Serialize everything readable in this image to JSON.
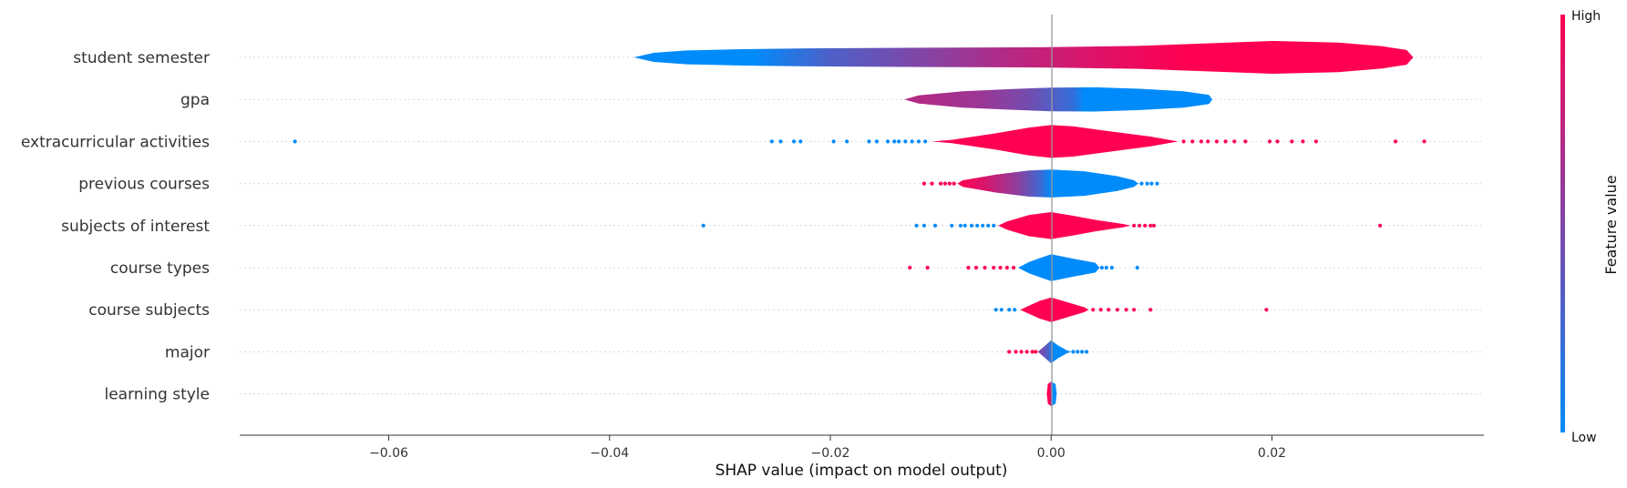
{
  "chart_data": {
    "type": "violin",
    "xlabel": "SHAP value (impact on model output)",
    "xlim": [
      -0.0735,
      0.0392
    ],
    "xticks": [
      -0.06,
      -0.04,
      -0.02,
      0.0,
      0.02
    ],
    "xtick_labels": [
      "−0.06",
      "−0.04",
      "−0.02",
      "0.00",
      "0.02"
    ],
    "grid": false,
    "colorbar": {
      "label": "Feature value",
      "high_label": "High",
      "low_label": "Low",
      "high_color": "#ff0052",
      "low_color": "#008bfb"
    },
    "features": [
      {
        "name": "student semester",
        "profile": [
          [
            -0.0378,
            0.0
          ],
          [
            -0.036,
            0.28
          ],
          [
            -0.033,
            0.42
          ],
          [
            -0.028,
            0.5
          ],
          [
            -0.022,
            0.55
          ],
          [
            -0.015,
            0.58
          ],
          [
            -0.008,
            0.6
          ],
          [
            0.0,
            0.62
          ],
          [
            0.008,
            0.7
          ],
          [
            0.015,
            0.88
          ],
          [
            0.02,
            1.0
          ],
          [
            0.026,
            0.9
          ],
          [
            0.03,
            0.68
          ],
          [
            0.0322,
            0.45
          ],
          [
            0.0328,
            0.0
          ]
        ],
        "colors": [
          [
            -0.0378,
            0.0
          ],
          [
            -0.027,
            0.0
          ],
          [
            -0.02,
            0.3
          ],
          [
            -0.012,
            0.5
          ],
          [
            -0.004,
            0.7
          ],
          [
            0.003,
            0.85
          ],
          [
            0.012,
            1.0
          ],
          [
            0.0328,
            1.0
          ]
        ],
        "outliers": []
      },
      {
        "name": "gpa",
        "profile": [
          [
            -0.0133,
            0.0
          ],
          [
            -0.012,
            0.25
          ],
          [
            -0.008,
            0.5
          ],
          [
            -0.004,
            0.62
          ],
          [
            0.0,
            0.72
          ],
          [
            0.004,
            0.74
          ],
          [
            0.008,
            0.65
          ],
          [
            0.012,
            0.5
          ],
          [
            0.0143,
            0.28
          ],
          [
            0.0146,
            0.0
          ]
        ],
        "colors": [
          [
            -0.0133,
            0.72
          ],
          [
            -0.006,
            0.6
          ],
          [
            -0.002,
            0.45
          ],
          [
            0.002,
            0.2
          ],
          [
            0.003,
            0.0
          ],
          [
            0.0146,
            0.0
          ]
        ],
        "outliers": []
      },
      {
        "name": "extracurricular activities",
        "profile": [
          [
            -0.0108,
            0.0
          ],
          [
            -0.009,
            0.1
          ],
          [
            -0.005,
            0.5
          ],
          [
            -0.002,
            0.85
          ],
          [
            0.0,
            1.0
          ],
          [
            0.002,
            0.92
          ],
          [
            0.005,
            0.65
          ],
          [
            0.009,
            0.3
          ],
          [
            0.0115,
            0.0
          ]
        ],
        "colors": [
          [
            -0.0108,
            1.0
          ],
          [
            0.0115,
            1.0
          ]
        ],
        "outliers": [
          {
            "x": -0.0685,
            "c": 0
          },
          {
            "x": -0.0253,
            "c": 0
          },
          {
            "x": -0.0245,
            "c": 0
          },
          {
            "x": -0.0233,
            "c": 0
          },
          {
            "x": -0.0227,
            "c": 0
          },
          {
            "x": -0.0197,
            "c": 0
          },
          {
            "x": -0.0185,
            "c": 0
          },
          {
            "x": -0.0165,
            "c": 0
          },
          {
            "x": -0.0158,
            "c": 0
          },
          {
            "x": -0.0148,
            "c": 0
          },
          {
            "x": -0.0142,
            "c": 0
          },
          {
            "x": -0.0138,
            "c": 0
          },
          {
            "x": -0.0132,
            "c": 0
          },
          {
            "x": -0.0126,
            "c": 0
          },
          {
            "x": -0.012,
            "c": 0
          },
          {
            "x": -0.0114,
            "c": 0
          },
          {
            "x": 0.012,
            "c": 1
          },
          {
            "x": 0.0128,
            "c": 1
          },
          {
            "x": 0.0136,
            "c": 1
          },
          {
            "x": 0.0142,
            "c": 1
          },
          {
            "x": 0.015,
            "c": 1
          },
          {
            "x": 0.0158,
            "c": 1
          },
          {
            "x": 0.0166,
            "c": 1
          },
          {
            "x": 0.0176,
            "c": 1
          },
          {
            "x": 0.0198,
            "c": 1
          },
          {
            "x": 0.0205,
            "c": 1
          },
          {
            "x": 0.0218,
            "c": 1
          },
          {
            "x": 0.0228,
            "c": 1
          },
          {
            "x": 0.024,
            "c": 1
          },
          {
            "x": 0.0312,
            "c": 1
          },
          {
            "x": 0.0338,
            "c": 1
          }
        ]
      },
      {
        "name": "previous courses",
        "profile": [
          [
            -0.0085,
            0.0
          ],
          [
            -0.008,
            0.2
          ],
          [
            -0.005,
            0.55
          ],
          [
            -0.002,
            0.8
          ],
          [
            0.0,
            0.85
          ],
          [
            0.003,
            0.75
          ],
          [
            0.006,
            0.45
          ],
          [
            0.0075,
            0.2
          ],
          [
            0.0079,
            0.0
          ]
        ],
        "colors": [
          [
            -0.0085,
            1.0
          ],
          [
            -0.006,
            0.85
          ],
          [
            -0.003,
            0.55
          ],
          [
            -0.001,
            0.25
          ],
          [
            0.0,
            0.0
          ],
          [
            0.0079,
            0.0
          ]
        ],
        "outliers": [
          {
            "x": -0.0115,
            "c": 1
          },
          {
            "x": -0.0108,
            "c": 1
          },
          {
            "x": -0.01,
            "c": 1
          },
          {
            "x": -0.0096,
            "c": 1
          },
          {
            "x": -0.0092,
            "c": 1
          },
          {
            "x": -0.0088,
            "c": 1
          },
          {
            "x": 0.0082,
            "c": 0
          },
          {
            "x": 0.0087,
            "c": 0
          },
          {
            "x": 0.0091,
            "c": 0
          },
          {
            "x": 0.0096,
            "c": 0
          }
        ]
      },
      {
        "name": "subjects of interest",
        "profile": [
          [
            -0.0048,
            0.0
          ],
          [
            -0.004,
            0.25
          ],
          [
            -0.002,
            0.65
          ],
          [
            0.0,
            0.82
          ],
          [
            0.002,
            0.6
          ],
          [
            0.004,
            0.35
          ],
          [
            0.0065,
            0.1
          ],
          [
            0.0072,
            0.0
          ]
        ],
        "colors": [
          [
            -0.0048,
            1.0
          ],
          [
            0.0072,
            1.0
          ]
        ],
        "outliers": [
          {
            "x": -0.0315,
            "c": 0
          },
          {
            "x": -0.0122,
            "c": 0
          },
          {
            "x": -0.0115,
            "c": 0
          },
          {
            "x": -0.0105,
            "c": 0
          },
          {
            "x": -0.009,
            "c": 0
          },
          {
            "x": -0.0082,
            "c": 0
          },
          {
            "x": -0.0078,
            "c": 0
          },
          {
            "x": -0.0072,
            "c": 0
          },
          {
            "x": -0.0067,
            "c": 0
          },
          {
            "x": -0.0062,
            "c": 0
          },
          {
            "x": -0.0057,
            "c": 0
          },
          {
            "x": -0.0052,
            "c": 0
          },
          {
            "x": 0.0075,
            "c": 1
          },
          {
            "x": 0.008,
            "c": 1
          },
          {
            "x": 0.0085,
            "c": 1
          },
          {
            "x": 0.009,
            "c": 1
          },
          {
            "x": 0.0093,
            "c": 1
          },
          {
            "x": 0.0298,
            "c": 1
          }
        ]
      },
      {
        "name": "course types",
        "profile": [
          [
            -0.003,
            0.0
          ],
          [
            -0.002,
            0.35
          ],
          [
            0.0,
            0.82
          ],
          [
            0.002,
            0.55
          ],
          [
            0.004,
            0.3
          ],
          [
            0.0044,
            0.0
          ]
        ],
        "colors": [
          [
            -0.003,
            0.0
          ],
          [
            0.0044,
            0.0
          ]
        ],
        "outliers": [
          {
            "x": -0.0128,
            "c": 1
          },
          {
            "x": -0.0112,
            "c": 1
          },
          {
            "x": -0.0075,
            "c": 1
          },
          {
            "x": -0.0068,
            "c": 1
          },
          {
            "x": -0.006,
            "c": 1
          },
          {
            "x": -0.0052,
            "c": 1
          },
          {
            "x": -0.0046,
            "c": 1
          },
          {
            "x": -0.004,
            "c": 1
          },
          {
            "x": -0.0034,
            "c": 1
          },
          {
            "x": 0.0046,
            "c": 0
          },
          {
            "x": 0.005,
            "c": 0
          },
          {
            "x": 0.0055,
            "c": 0
          },
          {
            "x": 0.0078,
            "c": 0
          }
        ]
      },
      {
        "name": "course subjects",
        "profile": [
          [
            -0.0028,
            0.0
          ],
          [
            -0.002,
            0.25
          ],
          [
            -0.001,
            0.55
          ],
          [
            0.0,
            0.75
          ],
          [
            0.001,
            0.55
          ],
          [
            0.002,
            0.35
          ],
          [
            0.003,
            0.15
          ],
          [
            0.0034,
            0.0
          ]
        ],
        "colors": [
          [
            -0.0028,
            1.0
          ],
          [
            0.0034,
            1.0
          ]
        ],
        "outliers": [
          {
            "x": -0.005,
            "c": 0
          },
          {
            "x": -0.0045,
            "c": 0
          },
          {
            "x": -0.0038,
            "c": 0
          },
          {
            "x": -0.0033,
            "c": 0
          },
          {
            "x": 0.0038,
            "c": 1
          },
          {
            "x": 0.0045,
            "c": 1
          },
          {
            "x": 0.0052,
            "c": 1
          },
          {
            "x": 0.006,
            "c": 1
          },
          {
            "x": 0.0068,
            "c": 1
          },
          {
            "x": 0.0075,
            "c": 1
          },
          {
            "x": 0.009,
            "c": 1
          },
          {
            "x": 0.0195,
            "c": 1
          }
        ]
      },
      {
        "name": "major",
        "profile": [
          [
            -0.0012,
            0.0
          ],
          [
            -0.0006,
            0.35
          ],
          [
            0.0,
            0.7
          ],
          [
            0.0006,
            0.4
          ],
          [
            0.0014,
            0.1
          ],
          [
            0.0018,
            0.0
          ]
        ],
        "colors": [
          [
            -0.0012,
            0.55
          ],
          [
            -0.0003,
            0.3
          ],
          [
            0.0003,
            0.0
          ],
          [
            0.0018,
            0.0
          ]
        ],
        "outliers": [
          {
            "x": -0.0038,
            "c": 1
          },
          {
            "x": -0.0032,
            "c": 1
          },
          {
            "x": -0.0027,
            "c": 1
          },
          {
            "x": -0.0022,
            "c": 1
          },
          {
            "x": -0.0017,
            "c": 1
          },
          {
            "x": -0.0014,
            "c": 1
          },
          {
            "x": 0.002,
            "c": 0
          },
          {
            "x": 0.0024,
            "c": 0
          },
          {
            "x": 0.0028,
            "c": 0
          },
          {
            "x": 0.0032,
            "c": 0
          }
        ]
      },
      {
        "name": "learning style",
        "profile": [
          [
            -0.0004,
            0.0
          ],
          [
            -0.0003,
            0.6
          ],
          [
            0.0,
            0.75
          ],
          [
            0.0004,
            0.6
          ],
          [
            0.0005,
            0.0
          ]
        ],
        "colors": [
          [
            -0.0004,
            1.0
          ],
          [
            -0.0001,
            1.0
          ],
          [
            0.0001,
            0.0
          ],
          [
            0.0005,
            0.0
          ]
        ],
        "outliers": []
      }
    ]
  }
}
